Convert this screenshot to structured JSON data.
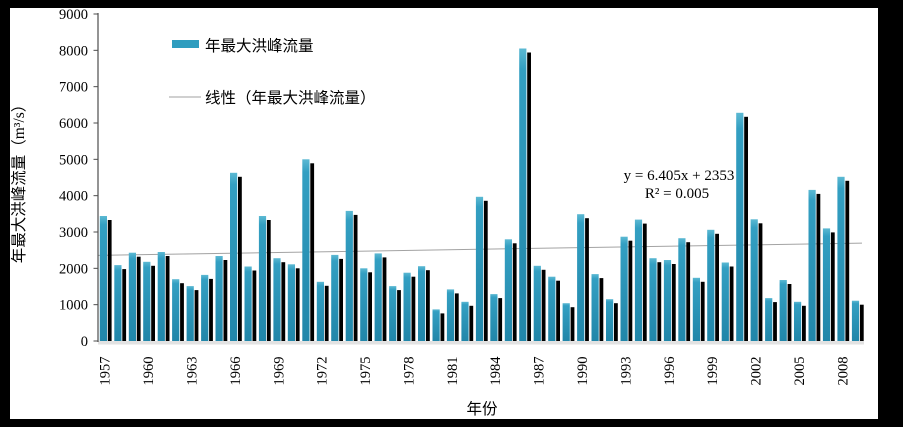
{
  "chart_data": {
    "type": "bar",
    "series_name": "年最大洪峰流量",
    "xlabel": "年份",
    "ylabel": "年最大洪峰流量（m³/s）",
    "ylim": [
      0,
      9000
    ],
    "yticks": [
      0,
      1000,
      2000,
      3000,
      4000,
      5000,
      6000,
      7000,
      8000,
      9000
    ],
    "xtick_labels": [
      "1957",
      "1960",
      "1963",
      "1966",
      "1969",
      "1972",
      "1975",
      "1978",
      "1981",
      "1984",
      "1987",
      "1990",
      "1993",
      "1996",
      "1999",
      "2002",
      "2005",
      "2008"
    ],
    "years": [
      1957,
      1958,
      1959,
      1960,
      1961,
      1962,
      1963,
      1964,
      1965,
      1966,
      1967,
      1968,
      1969,
      1970,
      1971,
      1972,
      1973,
      1974,
      1975,
      1976,
      1977,
      1978,
      1979,
      1980,
      1981,
      1982,
      1983,
      1984,
      1985,
      1986,
      1987,
      1988,
      1989,
      1990,
      1991,
      1992,
      1993,
      1994,
      1995,
      1996,
      1997,
      1998,
      1999,
      2000,
      2001,
      2002,
      2003,
      2004,
      2005,
      2006,
      2007,
      2008,
      2009
    ],
    "values": [
      3440,
      2090,
      2430,
      2180,
      2450,
      1700,
      1510,
      1820,
      2340,
      4630,
      2050,
      3440,
      2280,
      2110,
      5000,
      1630,
      2370,
      3580,
      2000,
      2410,
      1510,
      1880,
      2060,
      870,
      1420,
      1080,
      3970,
      1290,
      2800,
      8050,
      2070,
      1770,
      1040,
      3490,
      1840,
      1150,
      2870,
      3340,
      2280,
      2230,
      2830,
      1740,
      3060,
      2160,
      6280,
      3350,
      1180,
      1680,
      1080,
      4160,
      3100,
      4520,
      1110
    ],
    "trendline": {
      "slope": 6.405,
      "intercept": 2353,
      "equation": "y = 6.405x + 2353",
      "r_squared": "R² = 0.005"
    },
    "legend_position": "top-left-inside",
    "grid": false,
    "bar_color": "#2f9dbf",
    "bar_shadow_color": "#000000",
    "trend_color": "#a3a3a3"
  },
  "legend": {
    "series_label": "年最大洪峰流量",
    "trend_label": "线性（年最大洪峰流量）"
  },
  "annotation": {
    "equation": "y = 6.405x + 2353",
    "r2": "R² = 0.005"
  },
  "axis": {
    "y_title": "年最大洪峰流量（m³/s）",
    "x_title": "年份"
  }
}
